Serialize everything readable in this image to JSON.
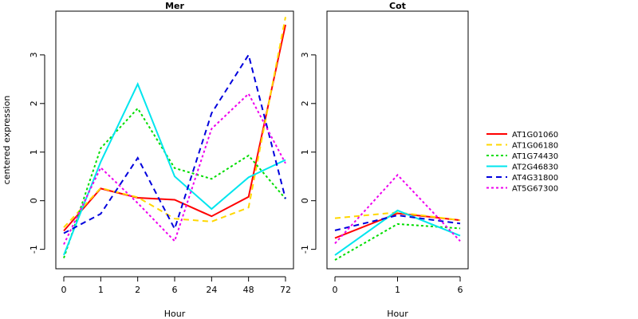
{
  "chart_data": {
    "type": "line",
    "ylabel": "centered expression",
    "ylim": [
      -1.4,
      3.9
    ],
    "yticks": [
      -1,
      0,
      1,
      2,
      3
    ],
    "grid": false,
    "legend_position": "right",
    "series_styles": [
      {
        "name": "AT1G01060",
        "color": "#ff0000",
        "dash": "solid"
      },
      {
        "name": "AT1G06180",
        "color": "#ffd700",
        "dash": "dashed"
      },
      {
        "name": "AT1G74430",
        "color": "#00dd00",
        "dash": "dotted"
      },
      {
        "name": "AT2G46830",
        "color": "#00e5ee",
        "dash": "solid"
      },
      {
        "name": "AT4G31800",
        "color": "#0000dd",
        "dash": "dashed"
      },
      {
        "name": "AT5G67300",
        "color": "#ee00ee",
        "dash": "dotted"
      }
    ],
    "panels": [
      {
        "title": "Mer",
        "xlabel": "Hour",
        "categories": [
          "0",
          "1",
          "2",
          "6",
          "24",
          "48",
          "72"
        ],
        "series": [
          {
            "name": "AT1G01060",
            "values": [
              -0.62,
              0.25,
              0.06,
              0.02,
              -0.32,
              0.08,
              3.62
            ]
          },
          {
            "name": "AT1G06180",
            "values": [
              -0.55,
              0.26,
              0.07,
              -0.37,
              -0.43,
              -0.14,
              3.78
            ]
          },
          {
            "name": "AT1G74430",
            "values": [
              -1.18,
              1.08,
              1.9,
              0.67,
              0.45,
              0.93,
              0.04
            ]
          },
          {
            "name": "AT2G46830",
            "values": [
              -1.12,
              0.8,
              2.4,
              0.5,
              -0.17,
              0.48,
              0.84
            ]
          },
          {
            "name": "AT4G31800",
            "values": [
              -0.67,
              -0.27,
              0.88,
              -0.58,
              1.8,
              3.0,
              0.04
            ]
          },
          {
            "name": "AT5G67300",
            "values": [
              -0.9,
              0.68,
              -0.05,
              -0.83,
              1.48,
              2.2,
              0.77
            ]
          }
        ]
      },
      {
        "title": "Cot",
        "xlabel": "Hour",
        "categories": [
          "0",
          "1",
          "6"
        ],
        "series": [
          {
            "name": "AT1G01060",
            "values": [
              -0.77,
              -0.26,
              -0.4
            ]
          },
          {
            "name": "AT1G06180",
            "values": [
              -0.36,
              -0.24,
              -0.4
            ]
          },
          {
            "name": "AT1G74430",
            "values": [
              -1.22,
              -0.48,
              -0.57
            ]
          },
          {
            "name": "AT2G46830",
            "values": [
              -1.12,
              -0.2,
              -0.72
            ]
          },
          {
            "name": "AT4G31800",
            "values": [
              -0.61,
              -0.3,
              -0.47
            ]
          },
          {
            "name": "AT5G67300",
            "values": [
              -0.88,
              0.53,
              -0.83
            ]
          }
        ]
      }
    ]
  }
}
